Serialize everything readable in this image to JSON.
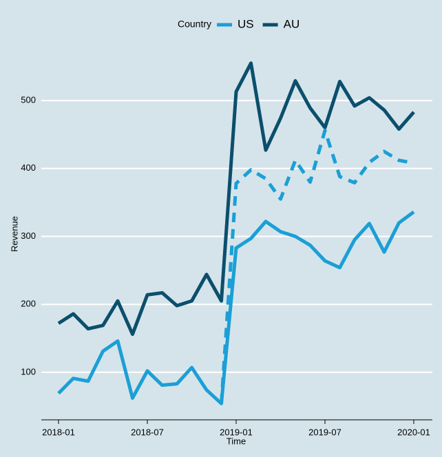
{
  "chart_data": {
    "type": "line",
    "x_label": "Time",
    "y_label": "Revenue",
    "legend_title": "Country",
    "legend": "top",
    "grid": true,
    "x": [
      "2018-01",
      "2018-02",
      "2018-03",
      "2018-04",
      "2018-05",
      "2018-06",
      "2018-07",
      "2018-08",
      "2018-09",
      "2018-10",
      "2018-11",
      "2018-12",
      "2019-01",
      "2019-02",
      "2019-03",
      "2019-04",
      "2019-05",
      "2019-06",
      "2019-07",
      "2019-08",
      "2019-09",
      "2019-10",
      "2019-11",
      "2019-12",
      "2020-01"
    ],
    "xticks": [
      "2018-01",
      "2018-07",
      "2019-01",
      "2019-07",
      "2020-01"
    ],
    "ylim": [
      30,
      572
    ],
    "yticks": [
      100,
      200,
      300,
      400,
      500
    ],
    "series": [
      {
        "name": "US",
        "color": "#1b9fd6",
        "values": [
          69,
          91,
          87,
          131,
          146,
          62,
          102,
          81,
          83,
          107,
          74,
          54,
          283,
          297,
          322,
          307,
          300,
          287,
          264,
          254,
          295,
          319,
          277,
          320,
          336
        ]
      },
      {
        "name": "AU",
        "color": "#0b4f6c",
        "values": [
          172,
          186,
          164,
          169,
          205,
          156,
          214,
          217,
          198,
          205,
          244,
          205,
          513,
          555,
          427,
          474,
          529,
          489,
          460,
          528,
          492,
          504,
          486,
          458,
          483
        ]
      },
      {
        "color": "#1b9fd6",
        "dashed": true,
        "values": [
          null,
          null,
          null,
          null,
          null,
          null,
          null,
          null,
          null,
          null,
          null,
          54,
          378,
          398,
          385,
          355,
          412,
          380,
          456,
          388,
          379,
          409,
          425,
          412,
          408
        ]
      }
    ]
  }
}
